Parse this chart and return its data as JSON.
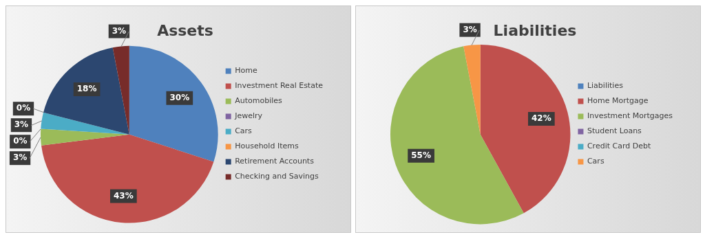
{
  "chart_data": [
    {
      "type": "pie",
      "title": "Assets",
      "legend": "right",
      "categories": [
        "Home",
        "Investment Real Estate",
        "Automobiles",
        "Jewelry",
        "Cars",
        "Household Items",
        "Retirement Accounts",
        "Checking and Savings"
      ],
      "values": [
        30,
        43,
        3,
        0,
        3,
        0,
        18,
        3
      ],
      "value_labels": [
        "30%",
        "43%",
        "3%",
        "0%",
        "3%",
        "0%",
        "18%",
        "3%"
      ],
      "colors": [
        "#4f81bd",
        "#c0504d",
        "#9bbb59",
        "#8064a2",
        "#4bacc6",
        "#f79646",
        "#2c4770",
        "#772c2a"
      ]
    },
    {
      "type": "pie",
      "title": "Liabilities",
      "legend": "right",
      "categories": [
        "Liabilities",
        "Home Mortgage",
        "Investment Mortgages",
        "Student Loans",
        "Credit Card Debt",
        "Cars"
      ],
      "values": [
        0,
        42,
        55,
        0,
        0,
        3
      ],
      "value_labels": [
        null,
        "42%",
        "55%",
        null,
        null,
        "3%"
      ],
      "colors": [
        "#4f81bd",
        "#c0504d",
        "#9bbb59",
        "#8064a2",
        "#4bacc6",
        "#f79646"
      ]
    }
  ]
}
